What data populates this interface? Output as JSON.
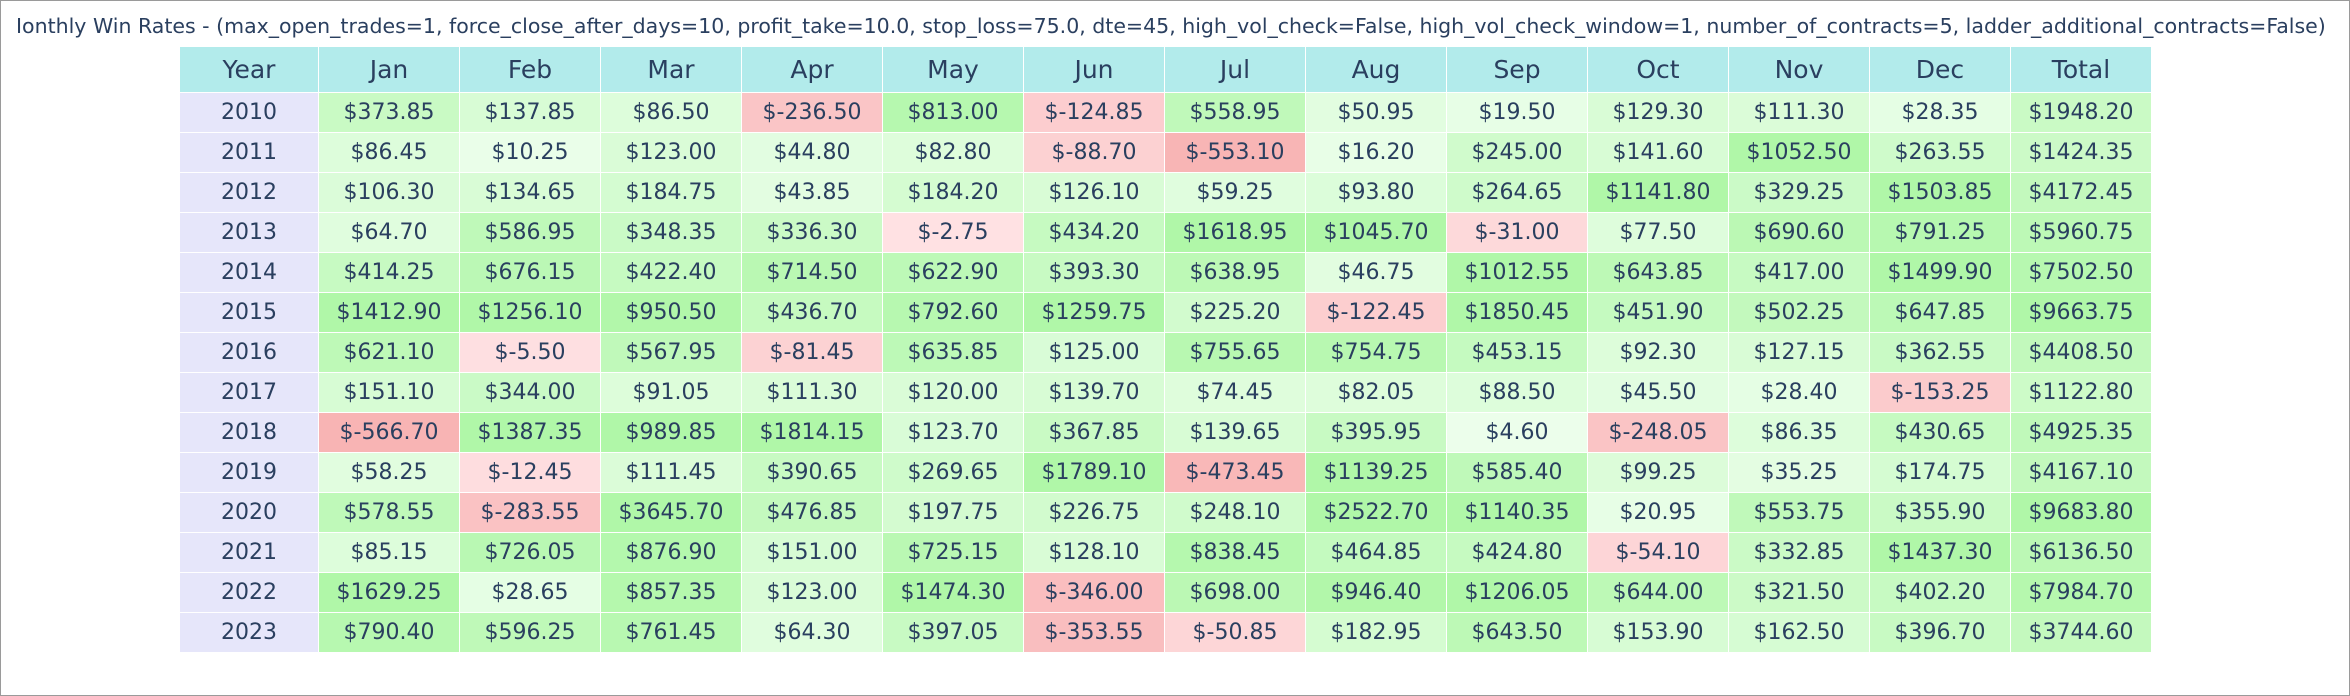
{
  "title": "Ionthly Win Rates - (max_open_trades=1, force_close_after_days=10, profit_take=10.0, stop_loss=75.0, dte=45, high_vol_check=False, high_vol_check_window=1, number_of_contracts=5, ladder_additional_contracts=False)",
  "colors": {
    "header_bg": "#b2ebeb",
    "year_bg": "#e6e6fa",
    "text": "#2a3f5f",
    "negative_light": "#ffe4e6",
    "negative_strong": "#f8b4b4",
    "positive_light": "#f0fff0",
    "positive_strong": "#b0f7a8"
  },
  "chart_data": {
    "type": "table",
    "columns": [
      "Year",
      "Jan",
      "Feb",
      "Mar",
      "Apr",
      "May",
      "Jun",
      "Jul",
      "Aug",
      "Sep",
      "Oct",
      "Nov",
      "Dec",
      "Total"
    ],
    "rows": [
      [
        "2010",
        "$373.85",
        "$137.85",
        "$86.50",
        "$-236.50",
        "$813.00",
        "$-124.85",
        "$558.95",
        "$50.95",
        "$19.50",
        "$129.30",
        "$111.30",
        "$28.35",
        "$1948.20"
      ],
      [
        "2011",
        "$86.45",
        "$10.25",
        "$123.00",
        "$44.80",
        "$82.80",
        "$-88.70",
        "$-553.10",
        "$16.20",
        "$245.00",
        "$141.60",
        "$1052.50",
        "$263.55",
        "$1424.35"
      ],
      [
        "2012",
        "$106.30",
        "$134.65",
        "$184.75",
        "$43.85",
        "$184.20",
        "$126.10",
        "$59.25",
        "$93.80",
        "$264.65",
        "$1141.80",
        "$329.25",
        "$1503.85",
        "$4172.45"
      ],
      [
        "2013",
        "$64.70",
        "$586.95",
        "$348.35",
        "$336.30",
        "$-2.75",
        "$434.20",
        "$1618.95",
        "$1045.70",
        "$-31.00",
        "$77.50",
        "$690.60",
        "$791.25",
        "$5960.75"
      ],
      [
        "2014",
        "$414.25",
        "$676.15",
        "$422.40",
        "$714.50",
        "$622.90",
        "$393.30",
        "$638.95",
        "$46.75",
        "$1012.55",
        "$643.85",
        "$417.00",
        "$1499.90",
        "$7502.50"
      ],
      [
        "2015",
        "$1412.90",
        "$1256.10",
        "$950.50",
        "$436.70",
        "$792.60",
        "$1259.75",
        "$225.20",
        "$-122.45",
        "$1850.45",
        "$451.90",
        "$502.25",
        "$647.85",
        "$9663.75"
      ],
      [
        "2016",
        "$621.10",
        "$-5.50",
        "$567.95",
        "$-81.45",
        "$635.85",
        "$125.00",
        "$755.65",
        "$754.75",
        "$453.15",
        "$92.30",
        "$127.15",
        "$362.55",
        "$4408.50"
      ],
      [
        "2017",
        "$151.10",
        "$344.00",
        "$91.05",
        "$111.30",
        "$120.00",
        "$139.70",
        "$74.45",
        "$82.05",
        "$88.50",
        "$45.50",
        "$28.40",
        "$-153.25",
        "$1122.80"
      ],
      [
        "2018",
        "$-566.70",
        "$1387.35",
        "$989.85",
        "$1814.15",
        "$123.70",
        "$367.85",
        "$139.65",
        "$395.95",
        "$4.60",
        "$-248.05",
        "$86.35",
        "$430.65",
        "$4925.35"
      ],
      [
        "2019",
        "$58.25",
        "$-12.45",
        "$111.45",
        "$390.65",
        "$269.65",
        "$1789.10",
        "$-473.45",
        "$1139.25",
        "$585.40",
        "$99.25",
        "$35.25",
        "$174.75",
        "$4167.10"
      ],
      [
        "2020",
        "$578.55",
        "$-283.55",
        "$3645.70",
        "$476.85",
        "$197.75",
        "$226.75",
        "$248.10",
        "$2522.70",
        "$1140.35",
        "$20.95",
        "$553.75",
        "$355.90",
        "$9683.80"
      ],
      [
        "2021",
        "$85.15",
        "$726.05",
        "$876.90",
        "$151.00",
        "$725.15",
        "$128.10",
        "$838.45",
        "$464.85",
        "$424.80",
        "$-54.10",
        "$332.85",
        "$1437.30",
        "$6136.50"
      ],
      [
        "2022",
        "$1629.25",
        "$28.65",
        "$857.35",
        "$123.00",
        "$1474.30",
        "$-346.00",
        "$698.00",
        "$946.40",
        "$1206.05",
        "$644.00",
        "$321.50",
        "$402.20",
        "$7984.70"
      ],
      [
        "2023",
        "$790.40",
        "$596.25",
        "$761.45",
        "$64.30",
        "$397.05",
        "$-353.55",
        "$-50.85",
        "$182.95",
        "$643.50",
        "$153.90",
        "$162.50",
        "$396.70",
        "$3744.60"
      ]
    ]
  }
}
